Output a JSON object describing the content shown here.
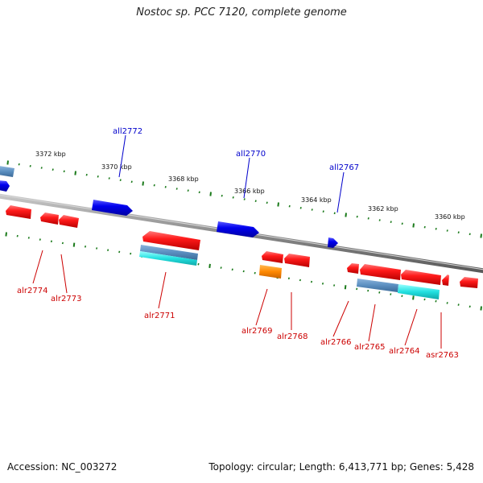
{
  "title": "Nostoc sp. PCC 7120, complete genome",
  "footer": {
    "accession": "Accession: NC_003272",
    "info": "Topology: circular; Length: 6,413,771 bp; Genes: 5,428"
  },
  "scale_labels": [
    "3372 kbp",
    "3370 kbp",
    "3368 kbp",
    "3366 kbp",
    "3364 kbp",
    "3362 kbp",
    "3360 kbp"
  ],
  "genes_reverse": [
    "all2772",
    "all2770",
    "all2767"
  ],
  "genes_forward": [
    "alr2774",
    "alr2773",
    "alr2771",
    "alr2769",
    "alr2768",
    "alr2766",
    "alr2765",
    "alr2764",
    "asr2763"
  ],
  "colors": {
    "forward_gene": "#ff0000",
    "reverse_gene": "#0000ee",
    "forward_label": "#cc0000",
    "reverse_label": "#0000cc",
    "backbone": "#888888",
    "scale_tick": "#1a7a1a",
    "feature_steelblue": "#5b8fc0",
    "feature_cyan": "#22dddd",
    "feature_orange": "#ff8800"
  }
}
